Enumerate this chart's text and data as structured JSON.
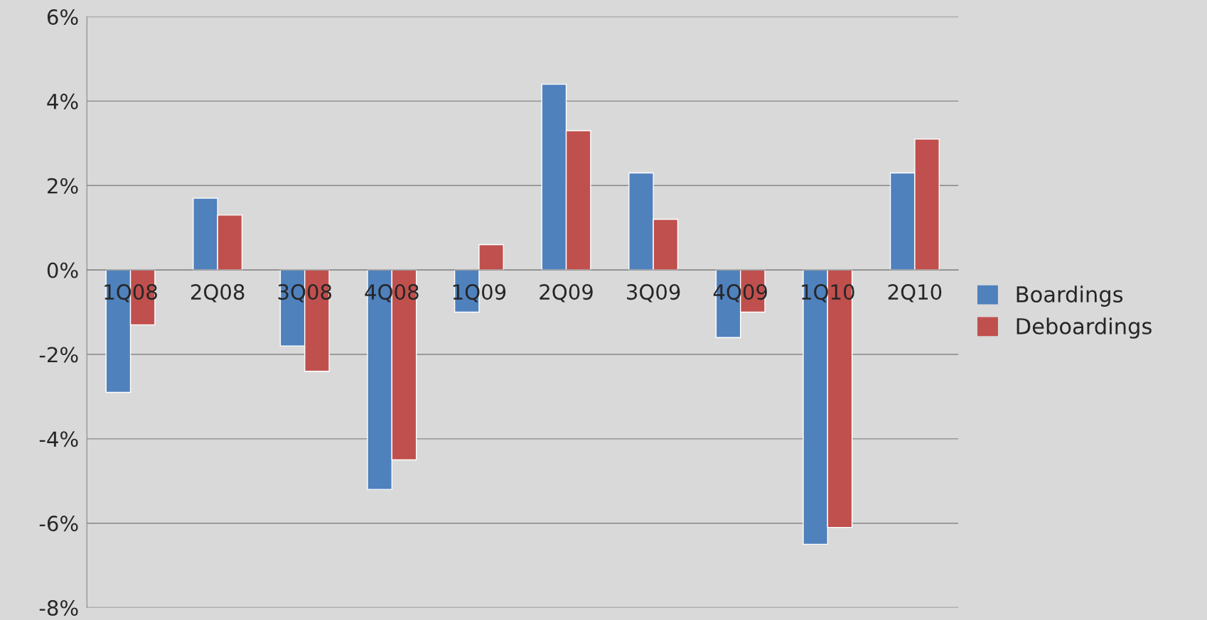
{
  "chart_data": {
    "type": "bar",
    "categories": [
      "1Q08",
      "2Q08",
      "3Q08",
      "4Q08",
      "1Q09",
      "2Q09",
      "3Q09",
      "4Q09",
      "1Q10",
      "2Q10"
    ],
    "series": [
      {
        "name": "Boardings",
        "color": "#4f81bd",
        "values": [
          -2.9,
          1.7,
          -1.8,
          -5.2,
          -1.0,
          4.4,
          2.3,
          -1.6,
          -6.5,
          2.3
        ]
      },
      {
        "name": "Deboardings",
        "color": "#c0504d",
        "values": [
          -1.3,
          1.3,
          -2.4,
          -4.5,
          0.6,
          3.3,
          1.2,
          -1.0,
          -6.1,
          3.1
        ]
      }
    ],
    "ylim": [
      -8,
      6
    ],
    "yticks": [
      {
        "value": -8,
        "label": "-8%"
      },
      {
        "value": -6,
        "label": "-6%"
      },
      {
        "value": -4,
        "label": "-4%"
      },
      {
        "value": -2,
        "label": "-2%"
      },
      {
        "value": 0,
        "label": "0%"
      },
      {
        "value": 2,
        "label": "2%"
      },
      {
        "value": 4,
        "label": "4%"
      },
      {
        "value": 6,
        "label": "6%"
      }
    ],
    "grid": "y",
    "legend": "right"
  }
}
